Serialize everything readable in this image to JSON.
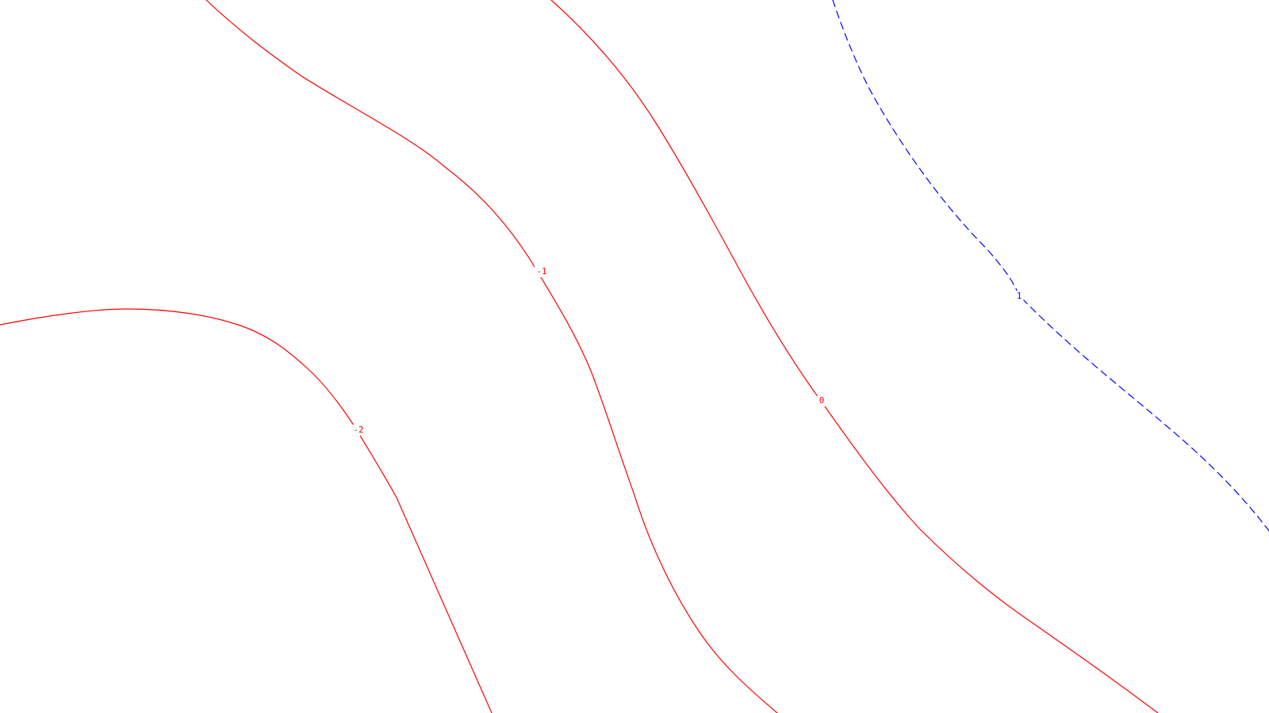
{
  "chart_data": {
    "type": "contour",
    "grid": false,
    "legend": "none",
    "colors": {
      "negative": "#ff0000",
      "zero": "#ff0000",
      "positive": "#0000ff",
      "background": "#ffffff"
    },
    "levels": [
      {
        "level": -2,
        "label": "-2",
        "color": "#ff0000",
        "dashed": false
      },
      {
        "level": -1,
        "label": "-1",
        "color": "#ff0000",
        "dashed": false
      },
      {
        "level": 0,
        "label": "0",
        "color": "#ff0000",
        "dashed": false
      },
      {
        "level": 1,
        "label": "1",
        "color": "#0000ff",
        "dashed": true
      }
    ]
  }
}
